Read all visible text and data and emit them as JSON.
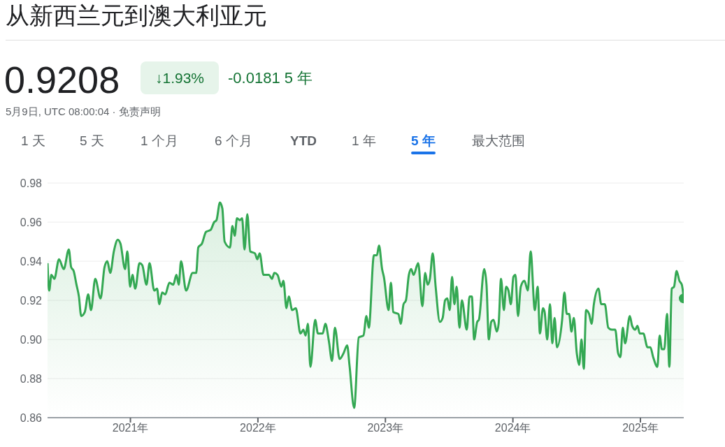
{
  "chart_data": {
    "type": "area",
    "title": "从新西兰元到澳大利亚元",
    "subtitle": "0.9208",
    "annotations": [
      "↓1.93%",
      "-0.0181 5 年",
      "5月9日, UTC 08:00:04 · 免责声明",
      "1 天",
      "5 天",
      "1 个月",
      "6 个月",
      "YTD",
      "1 年",
      "5 年",
      "最大范围"
    ],
    "color": "#34a853",
    "grid": "y",
    "xlim": [
      2020.35,
      2025.34
    ],
    "xticks": [
      {
        "value": 2021,
        "label": "2021年"
      },
      {
        "value": 2022,
        "label": "2022年"
      },
      {
        "value": 2023,
        "label": "2023年"
      },
      {
        "value": 2024,
        "label": "2024年"
      },
      {
        "value": 2025,
        "label": "2025年"
      }
    ],
    "ylim": [
      0.86,
      0.98
    ],
    "yticks": [
      {
        "value": 0.86,
        "label": "0.86"
      },
      {
        "value": 0.88,
        "label": "0.88"
      },
      {
        "value": 0.9,
        "label": "0.90"
      },
      {
        "value": 0.92,
        "label": "0.92"
      },
      {
        "value": 0.94,
        "label": "0.94"
      },
      {
        "value": 0.96,
        "label": "0.96"
      },
      {
        "value": 0.98,
        "label": "0.98"
      }
    ],
    "x": [
      2020.35,
      2020.363,
      2020.38,
      2020.403,
      2020.44,
      2020.477,
      2020.517,
      2020.535,
      2020.555,
      2020.577,
      2020.596,
      2020.614,
      2020.642,
      2020.669,
      2020.691,
      2020.724,
      2020.766,
      2020.797,
      2020.819,
      2020.842,
      2020.87,
      2020.901,
      2020.922,
      2020.958,
      2020.976,
      2020.998,
      2021.016,
      2021.038,
      2021.071,
      2021.093,
      2021.126,
      2021.15,
      2021.187,
      2021.209,
      2021.227,
      2021.249,
      2021.273,
      2021.306,
      2021.336,
      2021.361,
      2021.379,
      2021.397,
      2021.437,
      2021.488,
      2021.516,
      2021.532,
      2021.561,
      2021.593,
      2021.629,
      2021.657,
      2021.675,
      2021.702,
      2021.721,
      2021.739,
      2021.781,
      2021.8,
      2021.818,
      2021.836,
      2021.858,
      2021.876,
      2021.895,
      2021.917,
      2021.94,
      2021.977,
      2021.995,
      2022.014,
      2022.044,
      2022.087,
      2022.11,
      2022.129,
      2022.154,
      2022.184,
      2022.2,
      2022.224,
      2022.242,
      2022.269,
      2022.297,
      2022.334,
      2022.356,
      2022.374,
      2022.392,
      2022.412,
      2022.449,
      2022.471,
      2022.508,
      2022.529,
      2022.557,
      2022.581,
      2022.604,
      2022.641,
      2022.672,
      2022.7,
      2022.718,
      2022.755,
      2022.791,
      2022.828,
      2022.851,
      2022.87,
      2022.91,
      2022.933,
      2022.95,
      2022.974,
      2022.988,
      2023.025,
      2023.043,
      2023.062,
      2023.102,
      2023.12,
      2023.142,
      2023.161,
      2023.184,
      2023.202,
      2023.221,
      2023.257,
      2023.29,
      2023.312,
      2023.331,
      2023.349,
      2023.371,
      2023.394,
      2023.427,
      2023.449,
      2023.468,
      2023.486,
      2023.504,
      2023.523,
      2023.541,
      2023.559,
      2023.581,
      2023.6,
      2023.638,
      2023.66,
      2023.678,
      2023.696,
      2023.72,
      2023.733,
      2023.775,
      2023.793,
      2023.811,
      2023.83,
      2023.848,
      2023.874,
      2023.888,
      2023.907,
      2023.929,
      2023.947,
      2023.965,
      2023.984,
      2024.004,
      2024.02,
      2024.04,
      2024.062,
      2024.09,
      2024.117,
      2024.139,
      2024.172,
      2024.194,
      2024.212,
      2024.236,
      2024.249,
      2024.269,
      2024.291,
      2024.309,
      2024.327,
      2024.346,
      2024.386,
      2024.404,
      2024.423,
      2024.441,
      2024.459,
      2024.478,
      2024.501,
      2024.52,
      2024.538,
      2024.556,
      2024.574,
      2024.598,
      2024.617,
      2024.635,
      2024.671,
      2024.693,
      2024.721,
      2024.748,
      2024.776,
      2024.803,
      2024.825,
      2024.843,
      2024.862,
      2024.88,
      2024.917,
      2024.935,
      2024.959,
      2024.977,
      2024.995,
      2025.023,
      2025.056,
      2025.078,
      2025.1,
      2025.133,
      2025.151,
      2025.169,
      2025.187,
      2025.209,
      2025.227,
      2025.246,
      2025.264,
      2025.284,
      2025.306,
      2025.325,
      2025.34
    ],
    "values": [
      0.939,
      0.925,
      0.933,
      0.931,
      0.941,
      0.936,
      0.946,
      0.937,
      0.935,
      0.928,
      0.922,
      0.912,
      0.914,
      0.923,
      0.915,
      0.931,
      0.921,
      0.937,
      0.94,
      0.934,
      0.945,
      0.951,
      0.949,
      0.936,
      0.945,
      0.927,
      0.933,
      0.926,
      0.939,
      0.938,
      0.928,
      0.939,
      0.925,
      0.926,
      0.918,
      0.924,
      0.923,
      0.929,
      0.928,
      0.933,
      0.928,
      0.94,
      0.925,
      0.934,
      0.934,
      0.947,
      0.949,
      0.955,
      0.956,
      0.96,
      0.961,
      0.97,
      0.967,
      0.95,
      0.947,
      0.958,
      0.953,
      0.962,
      0.961,
      0.962,
      0.946,
      0.964,
      0.945,
      0.944,
      0.941,
      0.944,
      0.933,
      0.933,
      0.931,
      0.934,
      0.933,
      0.927,
      0.93,
      0.916,
      0.922,
      0.915,
      0.916,
      0.903,
      0.905,
      0.902,
      0.908,
      0.886,
      0.91,
      0.903,
      0.903,
      0.908,
      0.899,
      0.889,
      0.906,
      0.89,
      0.893,
      0.897,
      0.887,
      0.865,
      0.901,
      0.902,
      0.912,
      0.906,
      0.943,
      0.943,
      0.948,
      0.936,
      0.932,
      0.915,
      0.929,
      0.914,
      0.913,
      0.908,
      0.918,
      0.92,
      0.933,
      0.936,
      0.933,
      0.939,
      0.917,
      0.934,
      0.928,
      0.931,
      0.944,
      0.927,
      0.909,
      0.911,
      0.92,
      0.921,
      0.915,
      0.932,
      0.918,
      0.927,
      0.906,
      0.92,
      0.905,
      0.922,
      0.922,
      0.9,
      0.909,
      0.91,
      0.936,
      0.928,
      0.9,
      0.909,
      0.91,
      0.904,
      0.908,
      0.931,
      0.915,
      0.927,
      0.925,
      0.918,
      0.932,
      0.933,
      0.912,
      0.927,
      0.93,
      0.925,
      0.945,
      0.915,
      0.927,
      0.903,
      0.916,
      0.914,
      0.9,
      0.918,
      0.898,
      0.911,
      0.896,
      0.91,
      0.924,
      0.913,
      0.913,
      0.904,
      0.911,
      0.893,
      0.887,
      0.9,
      0.885,
      0.915,
      0.913,
      0.908,
      0.918,
      0.926,
      0.918,
      0.918,
      0.906,
      0.905,
      0.905,
      0.893,
      0.891,
      0.906,
      0.898,
      0.912,
      0.907,
      0.905,
      0.907,
      0.903,
      0.903,
      0.896,
      0.896,
      0.891,
      0.886,
      0.902,
      0.895,
      0.895,
      0.913,
      0.886,
      0.926,
      0.927,
      0.935,
      0.93,
      0.928,
      0.921
    ]
  }
}
